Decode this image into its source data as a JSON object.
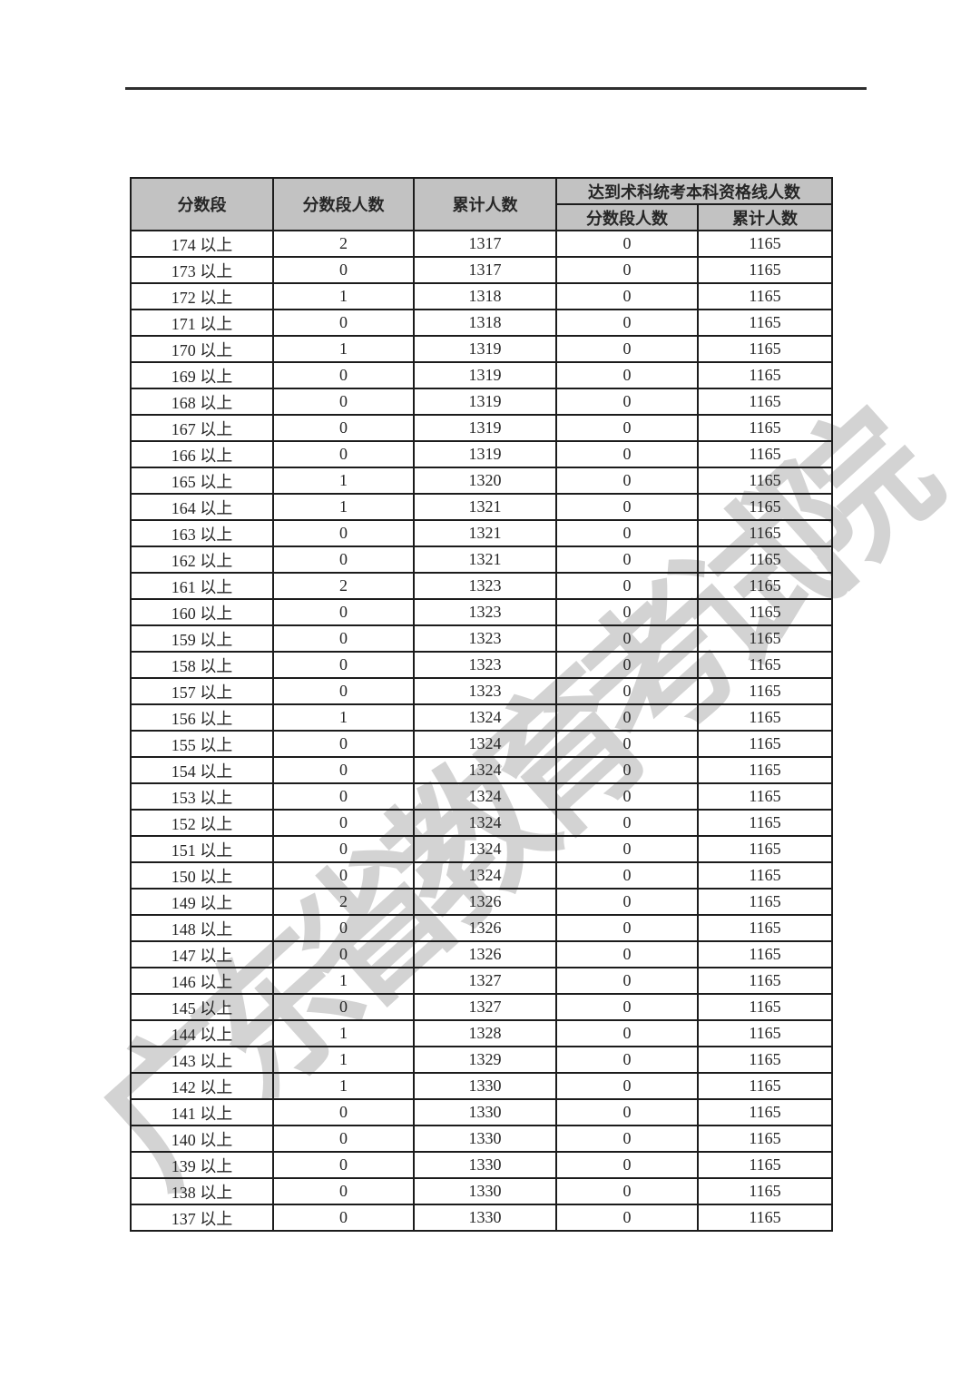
{
  "watermark": {
    "text": "广东省教育考试院"
  },
  "colors": {
    "header_bg": "#c2c2c2",
    "border": "#1c1c1c",
    "rule": "#2e2e2e",
    "watermark": "#a9a9a9"
  },
  "table": {
    "header": {
      "score_band": "分数段",
      "band_count": "分数段人数",
      "cumulative_count": "累计人数",
      "qualified_group": "达到术科统考本科资格线人数",
      "qualified_band_count": "分数段人数",
      "qualified_cumulative_count": "累计人数"
    },
    "rows": [
      {
        "score": "174 以上",
        "band": "2",
        "cum": "1317",
        "q_band": "0",
        "q_cum": "1165"
      },
      {
        "score": "173 以上",
        "band": "0",
        "cum": "1317",
        "q_band": "0",
        "q_cum": "1165"
      },
      {
        "score": "172 以上",
        "band": "1",
        "cum": "1318",
        "q_band": "0",
        "q_cum": "1165"
      },
      {
        "score": "171 以上",
        "band": "0",
        "cum": "1318",
        "q_band": "0",
        "q_cum": "1165"
      },
      {
        "score": "170 以上",
        "band": "1",
        "cum": "1319",
        "q_band": "0",
        "q_cum": "1165"
      },
      {
        "score": "169 以上",
        "band": "0",
        "cum": "1319",
        "q_band": "0",
        "q_cum": "1165"
      },
      {
        "score": "168 以上",
        "band": "0",
        "cum": "1319",
        "q_band": "0",
        "q_cum": "1165"
      },
      {
        "score": "167 以上",
        "band": "0",
        "cum": "1319",
        "q_band": "0",
        "q_cum": "1165"
      },
      {
        "score": "166 以上",
        "band": "0",
        "cum": "1319",
        "q_band": "0",
        "q_cum": "1165"
      },
      {
        "score": "165 以上",
        "band": "1",
        "cum": "1320",
        "q_band": "0",
        "q_cum": "1165"
      },
      {
        "score": "164 以上",
        "band": "1",
        "cum": "1321",
        "q_band": "0",
        "q_cum": "1165"
      },
      {
        "score": "163 以上",
        "band": "0",
        "cum": "1321",
        "q_band": "0",
        "q_cum": "1165"
      },
      {
        "score": "162 以上",
        "band": "0",
        "cum": "1321",
        "q_band": "0",
        "q_cum": "1165"
      },
      {
        "score": "161 以上",
        "band": "2",
        "cum": "1323",
        "q_band": "0",
        "q_cum": "1165"
      },
      {
        "score": "160 以上",
        "band": "0",
        "cum": "1323",
        "q_band": "0",
        "q_cum": "1165"
      },
      {
        "score": "159 以上",
        "band": "0",
        "cum": "1323",
        "q_band": "0",
        "q_cum": "1165"
      },
      {
        "score": "158 以上",
        "band": "0",
        "cum": "1323",
        "q_band": "0",
        "q_cum": "1165"
      },
      {
        "score": "157 以上",
        "band": "0",
        "cum": "1323",
        "q_band": "0",
        "q_cum": "1165"
      },
      {
        "score": "156 以上",
        "band": "1",
        "cum": "1324",
        "q_band": "0",
        "q_cum": "1165"
      },
      {
        "score": "155 以上",
        "band": "0",
        "cum": "1324",
        "q_band": "0",
        "q_cum": "1165"
      },
      {
        "score": "154 以上",
        "band": "0",
        "cum": "1324",
        "q_band": "0",
        "q_cum": "1165"
      },
      {
        "score": "153 以上",
        "band": "0",
        "cum": "1324",
        "q_band": "0",
        "q_cum": "1165"
      },
      {
        "score": "152 以上",
        "band": "0",
        "cum": "1324",
        "q_band": "0",
        "q_cum": "1165"
      },
      {
        "score": "151 以上",
        "band": "0",
        "cum": "1324",
        "q_band": "0",
        "q_cum": "1165"
      },
      {
        "score": "150 以上",
        "band": "0",
        "cum": "1324",
        "q_band": "0",
        "q_cum": "1165"
      },
      {
        "score": "149 以上",
        "band": "2",
        "cum": "1326",
        "q_band": "0",
        "q_cum": "1165"
      },
      {
        "score": "148 以上",
        "band": "0",
        "cum": "1326",
        "q_band": "0",
        "q_cum": "1165"
      },
      {
        "score": "147 以上",
        "band": "0",
        "cum": "1326",
        "q_band": "0",
        "q_cum": "1165"
      },
      {
        "score": "146 以上",
        "band": "1",
        "cum": "1327",
        "q_band": "0",
        "q_cum": "1165"
      },
      {
        "score": "145 以上",
        "band": "0",
        "cum": "1327",
        "q_band": "0",
        "q_cum": "1165"
      },
      {
        "score": "144 以上",
        "band": "1",
        "cum": "1328",
        "q_band": "0",
        "q_cum": "1165"
      },
      {
        "score": "143 以上",
        "band": "1",
        "cum": "1329",
        "q_band": "0",
        "q_cum": "1165"
      },
      {
        "score": "142 以上",
        "band": "1",
        "cum": "1330",
        "q_band": "0",
        "q_cum": "1165"
      },
      {
        "score": "141 以上",
        "band": "0",
        "cum": "1330",
        "q_band": "0",
        "q_cum": "1165"
      },
      {
        "score": "140 以上",
        "band": "0",
        "cum": "1330",
        "q_band": "0",
        "q_cum": "1165"
      },
      {
        "score": "139 以上",
        "band": "0",
        "cum": "1330",
        "q_band": "0",
        "q_cum": "1165"
      },
      {
        "score": "138 以上",
        "band": "0",
        "cum": "1330",
        "q_band": "0",
        "q_cum": "1165"
      },
      {
        "score": "137 以上",
        "band": "0",
        "cum": "1330",
        "q_band": "0",
        "q_cum": "1165"
      }
    ]
  }
}
